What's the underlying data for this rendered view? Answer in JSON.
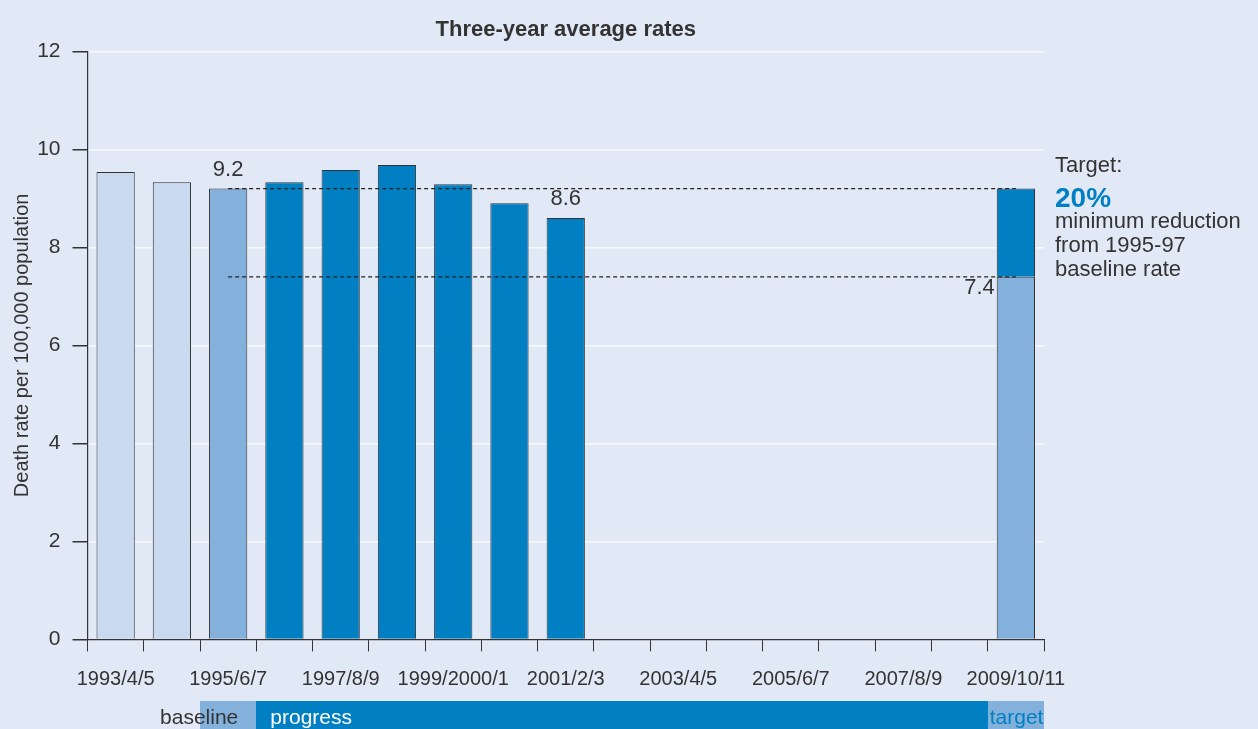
{
  "chart_data": {
    "type": "bar",
    "title": "Three-year average rates",
    "ylabel": "Death rate per 100,000 population",
    "categories": [
      "1993/4/5",
      null,
      "1995/6/7",
      null,
      "1997/8/9",
      null,
      "1999/2000/1",
      null,
      "2001/2/3",
      null,
      "2003/4/5",
      null,
      "2005/6/7",
      null,
      "2007/8/9",
      null,
      "2009/10/11"
    ],
    "ylim": [
      0,
      12
    ],
    "yticks": [
      0,
      2,
      4,
      6,
      8,
      10,
      12
    ],
    "grid": "y",
    "stacked": true,
    "series": [
      {
        "color": "#c9daf0",
        "values": [
          9.54,
          9.33,
          null,
          null,
          null,
          null,
          null,
          null,
          null,
          null,
          null,
          null,
          null,
          null,
          null,
          null,
          null
        ]
      },
      {
        "color": "#84b1dc",
        "values": [
          null,
          null,
          9.2,
          null,
          null,
          null,
          null,
          null,
          null,
          null,
          null,
          null,
          null,
          null,
          null,
          null,
          7.4
        ],
        "value_labels": [
          null,
          null,
          "9.2",
          null,
          null,
          null,
          null,
          null,
          null,
          null,
          null,
          null,
          null,
          null,
          null,
          null,
          "7.4"
        ]
      },
      {
        "color": "#007fc3",
        "values": [
          null,
          null,
          null,
          9.33,
          9.58,
          9.68,
          9.29,
          8.9,
          8.6,
          null,
          null,
          null,
          null,
          null,
          null,
          null,
          1.8
        ],
        "value_labels": [
          null,
          null,
          null,
          null,
          null,
          null,
          null,
          null,
          "8.6",
          null,
          null,
          null,
          null,
          null,
          null,
          null,
          null
        ]
      },
      {
        "type": "line",
        "x": [
          "1995/6/7",
          "2009/10/11"
        ],
        "values": [
          9.2,
          9.2
        ],
        "color": "#222222",
        "line_style": "dashed",
        "marker": "none"
      },
      {
        "type": "line",
        "x": [
          "1995/6/7",
          "2009/10/11"
        ],
        "values": [
          7.4,
          7.4
        ],
        "color": "#222222",
        "line_style": "dashed",
        "marker": "none"
      }
    ],
    "annotations": [
      "baseline",
      "progress",
      "target",
      "Target:",
      "20%",
      "minimum reduction from 1995-97 baseline rate"
    ]
  }
}
